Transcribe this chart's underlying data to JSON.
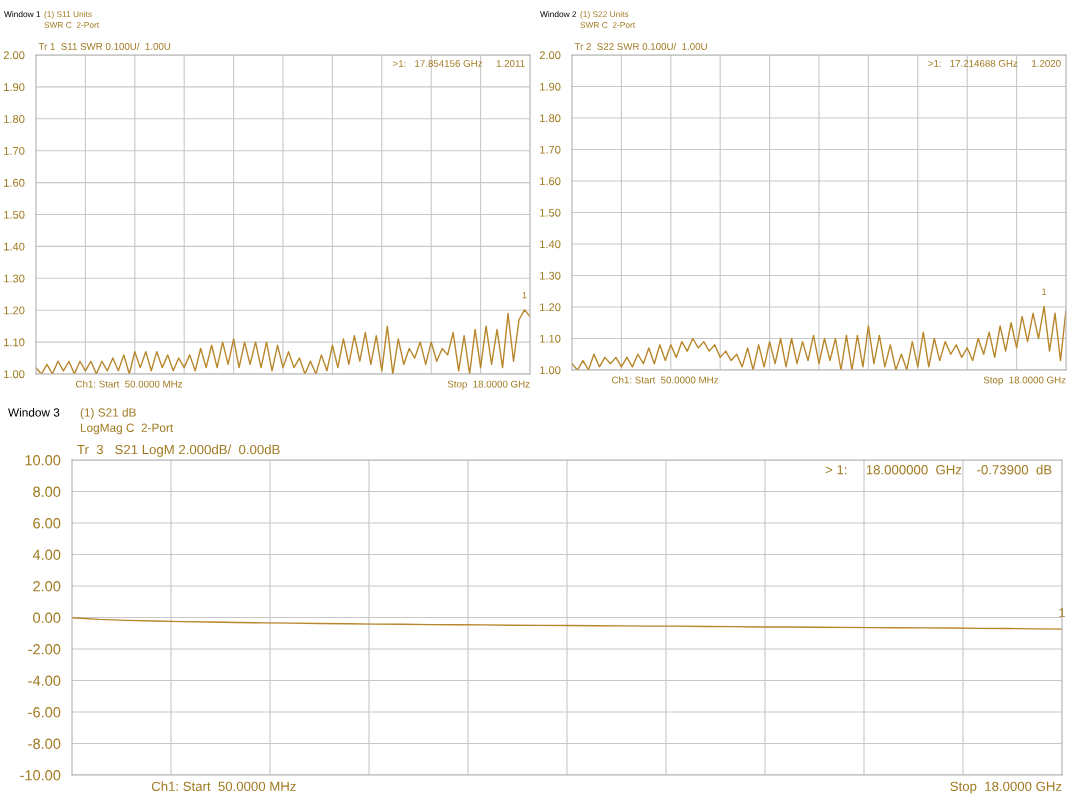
{
  "chart_data": [
    {
      "type": "line",
      "title": "Window 1",
      "subtitle": "(1) S11 Units\nSWR C  2-Port",
      "annotations": [
        "Tr 1  S11 SWR 0.100U/  1.00U",
        "Ch1: Start  50.0000 MHz",
        "Stop  18.0000 GHz",
        ">1:   17.854156 GHz     1.2011",
        {
          "text": "1",
          "y": 1.2011
        }
      ],
      "categories": [
        null,
        null,
        null,
        null,
        null,
        null,
        null,
        null,
        null,
        null,
        null,
        null,
        null,
        null,
        null,
        null,
        null,
        null,
        null,
        null,
        null,
        null,
        null,
        null,
        null,
        null,
        null,
        null,
        null,
        null,
        null,
        null,
        null,
        null,
        null,
        null,
        null,
        null,
        null,
        null,
        null,
        null,
        null,
        null,
        null,
        null,
        null,
        null,
        null,
        null,
        null,
        null,
        null,
        null,
        null,
        null,
        null,
        null,
        null,
        null,
        null,
        null,
        null,
        null,
        null,
        null,
        null,
        null,
        null,
        null,
        null,
        null,
        null,
        null,
        null,
        null,
        null,
        null,
        null,
        null,
        null,
        null,
        null,
        null,
        null,
        null,
        null,
        null,
        null,
        null,
        null
      ],
      "series": [
        {
          "color": "#b8862b",
          "values": [
            1.02,
            1.0,
            1.03,
            1.0,
            1.04,
            1.01,
            1.04,
            1.0,
            1.04,
            1.01,
            1.04,
            1.0,
            1.04,
            1.01,
            1.05,
            1.01,
            1.06,
            1.0,
            1.07,
            1.02,
            1.07,
            1.01,
            1.07,
            1.02,
            1.06,
            1.01,
            1.05,
            1.02,
            1.06,
            1.01,
            1.08,
            1.02,
            1.09,
            1.02,
            1.1,
            1.03,
            1.11,
            1.02,
            1.1,
            1.03,
            1.1,
            1.02,
            1.1,
            1.01,
            1.09,
            1.02,
            1.07,
            1.02,
            1.05,
            1.0,
            1.04,
            1.0,
            1.06,
            1.01,
            1.09,
            1.02,
            1.11,
            1.03,
            1.12,
            1.04,
            1.13,
            1.03,
            1.12,
            1.01,
            1.15,
            1.0,
            1.11,
            1.03,
            1.08,
            1.05,
            1.1,
            1.03,
            1.1,
            1.04,
            1.08,
            1.06,
            1.13,
            1.01,
            1.12,
            1.0,
            1.14,
            1.02,
            1.15,
            1.03,
            1.14,
            1.02,
            1.19,
            1.04,
            1.17,
            1.2011,
            1.18
          ]
        }
      ],
      "ylim": [
        1.0,
        2.0
      ],
      "yticks": [
        {
          "value": 1.0,
          "label": "1.00"
        },
        {
          "value": 1.1,
          "label": "1.10"
        },
        {
          "value": 1.2,
          "label": "1.20"
        },
        {
          "value": 1.3,
          "label": "1.30"
        },
        {
          "value": 1.4,
          "label": "1.40"
        },
        {
          "value": 1.5,
          "label": "1.50"
        },
        {
          "value": 1.6,
          "label": "1.60"
        },
        {
          "value": 1.7,
          "label": "1.70"
        },
        {
          "value": 1.8,
          "label": "1.80"
        },
        {
          "value": 1.9,
          "label": "1.90"
        },
        {
          "value": 2.0,
          "label": "2.00"
        }
      ],
      "grid": true,
      "tick_labels": "y"
    },
    {
      "type": "line",
      "title": "Window 2",
      "subtitle": "(1) S22 Units\nSWR C  2-Port",
      "annotations": [
        "Tr 2  S22 SWR 0.100U/  1.00U",
        "Ch1: Start  50.0000 MHz",
        "Stop  18.0000 GHz",
        ">1:   17.214688 GHz     1.2020",
        {
          "text": "1",
          "y": 1.202
        }
      ],
      "categories": [
        null,
        null,
        null,
        null,
        null,
        null,
        null,
        null,
        null,
        null,
        null,
        null,
        null,
        null,
        null,
        null,
        null,
        null,
        null,
        null,
        null,
        null,
        null,
        null,
        null,
        null,
        null,
        null,
        null,
        null,
        null,
        null,
        null,
        null,
        null,
        null,
        null,
        null,
        null,
        null,
        null,
        null,
        null,
        null,
        null,
        null,
        null,
        null,
        null,
        null,
        null,
        null,
        null,
        null,
        null,
        null,
        null,
        null,
        null,
        null,
        null,
        null,
        null,
        null,
        null,
        null,
        null,
        null,
        null,
        null,
        null,
        null,
        null,
        null,
        null,
        null,
        null,
        null,
        null,
        null,
        null,
        null,
        null,
        null,
        null,
        null,
        null,
        null,
        null,
        null,
        null
      ],
      "series": [
        {
          "color": "#b8862b",
          "values": [
            1.02,
            1.0,
            1.03,
            1.0,
            1.05,
            1.01,
            1.04,
            1.02,
            1.04,
            1.01,
            1.04,
            1.01,
            1.05,
            1.02,
            1.07,
            1.02,
            1.08,
            1.03,
            1.08,
            1.04,
            1.09,
            1.06,
            1.1,
            1.07,
            1.09,
            1.06,
            1.08,
            1.04,
            1.06,
            1.03,
            1.05,
            1.01,
            1.07,
            1.0,
            1.08,
            1.01,
            1.09,
            1.02,
            1.1,
            1.01,
            1.1,
            1.02,
            1.09,
            1.03,
            1.11,
            1.02,
            1.1,
            1.03,
            1.1,
            1.0,
            1.11,
            1.0,
            1.11,
            1.01,
            1.14,
            1.02,
            1.11,
            1.01,
            1.08,
            1.0,
            1.05,
            1.0,
            1.09,
            1.01,
            1.12,
            1.01,
            1.1,
            1.03,
            1.09,
            1.05,
            1.08,
            1.04,
            1.07,
            1.03,
            1.1,
            1.05,
            1.12,
            1.04,
            1.14,
            1.06,
            1.15,
            1.07,
            1.17,
            1.09,
            1.18,
            1.1,
            1.202,
            1.06,
            1.18,
            1.03,
            1.19
          ]
        }
      ],
      "ylim": [
        1.0,
        2.0
      ],
      "yticks": [
        {
          "value": 1.0,
          "label": "1.00"
        },
        {
          "value": 1.1,
          "label": "1.10"
        },
        {
          "value": 1.2,
          "label": "1.20"
        },
        {
          "value": 1.3,
          "label": "1.30"
        },
        {
          "value": 1.4,
          "label": "1.40"
        },
        {
          "value": 1.5,
          "label": "1.50"
        },
        {
          "value": 1.6,
          "label": "1.60"
        },
        {
          "value": 1.7,
          "label": "1.70"
        },
        {
          "value": 1.8,
          "label": "1.80"
        },
        {
          "value": 1.9,
          "label": "1.90"
        },
        {
          "value": 2.0,
          "label": "2.00"
        }
      ],
      "grid": true,
      "tick_labels": "y"
    },
    {
      "type": "line",
      "title": "Window 3",
      "subtitle": "(1) S21 dB\nLogMag C  2-Port",
      "annotations": [
        "Tr  3   S21 LogM 2.000dB/  0.00dB",
        "Ch1: Start  50.0000 MHz",
        "Stop  18.0000 GHz",
        "> 1:     18.000000  GHz    -0.73900  dB",
        {
          "text": "1",
          "y": -0.739
        }
      ],
      "categories": [
        null,
        null,
        null,
        null,
        null,
        null,
        null,
        null,
        null,
        null,
        null,
        null,
        null,
        null,
        null,
        null,
        null,
        null,
        null,
        null,
        null,
        null,
        null,
        null,
        null,
        null,
        null,
        null,
        null,
        null,
        null,
        null,
        null,
        null,
        null,
        null,
        null
      ],
      "series": [
        {
          "color": "#b8862b",
          "values": [
            -0.02,
            -0.12,
            -0.18,
            -0.22,
            -0.26,
            -0.29,
            -0.32,
            -0.34,
            -0.36,
            -0.38,
            -0.4,
            -0.42,
            -0.43,
            -0.45,
            -0.46,
            -0.47,
            -0.49,
            -0.5,
            -0.51,
            -0.52,
            -0.53,
            -0.55,
            -0.55,
            -0.57,
            -0.58,
            -0.6,
            -0.6,
            -0.62,
            -0.63,
            -0.64,
            -0.65,
            -0.66,
            -0.67,
            -0.69,
            -0.7,
            -0.72,
            -0.739
          ]
        }
      ],
      "ylim": [
        -10.0,
        10.0
      ],
      "yticks": [
        {
          "value": -10.0,
          "label": "-10.00"
        },
        {
          "value": -8.0,
          "label": "-8.00"
        },
        {
          "value": -6.0,
          "label": "-6.00"
        },
        {
          "value": -4.0,
          "label": "-4.00"
        },
        {
          "value": -2.0,
          "label": "-2.00"
        },
        {
          "value": 0.0,
          "label": "0.00"
        },
        {
          "value": 2.0,
          "label": "2.00"
        },
        {
          "value": 4.0,
          "label": "4.00"
        },
        {
          "value": 6.0,
          "label": "6.00"
        },
        {
          "value": 8.0,
          "label": "8.00"
        },
        {
          "value": 10.0,
          "label": "10.00"
        }
      ],
      "grid": true,
      "tick_labels": "y"
    }
  ]
}
